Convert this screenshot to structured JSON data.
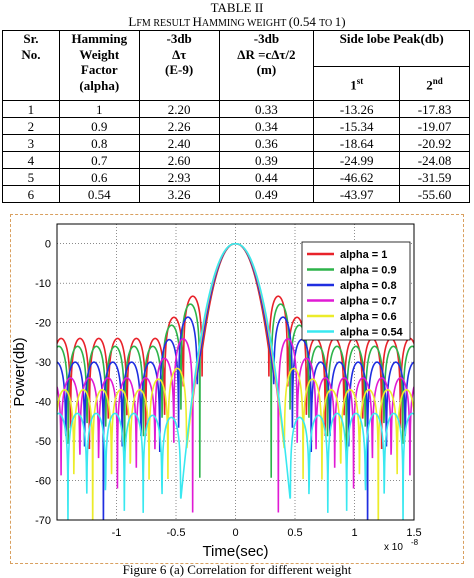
{
  "table": {
    "title": "TABLE II",
    "caption_parts": [
      "L",
      "FM ",
      "RESULT ",
      "H",
      "AMMING WEIGHT ",
      "(0.54 ",
      "TO ",
      "1)"
    ],
    "headers": {
      "sr": [
        "Sr.",
        "No."
      ],
      "hamming": [
        "Hamming",
        "Weight",
        "Factor",
        "(alpha)"
      ],
      "dt": [
        "-3db",
        "Δτ",
        "(E-9)"
      ],
      "dr": [
        "-3db",
        "ΔR =cΔτ/2",
        "(m)"
      ],
      "side_lobe": "Side lobe Peak(db)",
      "first": "1",
      "first_sup": "st",
      "second": "2",
      "second_sup": "nd"
    },
    "rows": [
      [
        "1",
        "1",
        "2.20",
        "0.33",
        "-13.26",
        "-17.83"
      ],
      [
        "2",
        "0.9",
        "2.26",
        "0.34",
        "-15.34",
        "-19.07"
      ],
      [
        "3",
        "0.8",
        "2.40",
        "0.36",
        "-18.64",
        "-20.92"
      ],
      [
        "4",
        "0.7",
        "2.60",
        "0.39",
        "-24.99",
        "-24.08"
      ],
      [
        "5",
        "0.6",
        "2.93",
        "0.44",
        "-46.62",
        "-31.59"
      ],
      [
        "6",
        "0.54",
        "3.26",
        "0.49",
        "-43.97",
        "-55.60"
      ]
    ]
  },
  "chart_data": {
    "type": "line",
    "xlabel": "Time(sec)",
    "ylabel": "Power(db)",
    "x_multiplier": "x 10",
    "x_multiplier_exp": "-8",
    "xlim": [
      -1.5,
      1.5
    ],
    "ylim": [
      -70,
      5
    ],
    "x_ticks": [
      -1.5,
      -1,
      -0.5,
      0,
      0.5,
      1,
      1.5
    ],
    "x_tick_labels": [
      "",
      "-1",
      "-0.5",
      "0",
      "0.5",
      "1",
      "1.5"
    ],
    "y_ticks": [
      0,
      -10,
      -20,
      -30,
      -40,
      -50,
      -60,
      -70
    ],
    "y_tick_labels": [
      "0",
      "-10",
      "-20",
      "-30",
      "-40",
      "-50",
      "-60",
      "-70"
    ],
    "grid": true,
    "legend_position": "top-right",
    "series": [
      {
        "name": "alpha = 1",
        "color": "#e8222a",
        "alpha": 1,
        "mainlobe_half_width": 0.28,
        "sidelobe_period": 0.158,
        "sidelobe_peak_db": -13.3,
        "sidelobe_far_db": -24,
        "null_db": -27
      },
      {
        "name": "alpha = 0.9",
        "color": "#2db34a",
        "alpha": 0.9,
        "mainlobe_half_width": 0.3,
        "sidelobe_period": 0.158,
        "sidelobe_peak_db": -15.3,
        "sidelobe_far_db": -26,
        "null_db": -29
      },
      {
        "name": "alpha = 0.8",
        "color": "#1f2ee0",
        "alpha": 0.8,
        "mainlobe_half_width": 0.32,
        "sidelobe_period": 0.158,
        "sidelobe_peak_db": -18.6,
        "sidelobe_far_db": -30,
        "null_db": -33
      },
      {
        "name": "alpha = 0.7",
        "color": "#e01ad4",
        "alpha": 0.7,
        "mainlobe_half_width": 0.36,
        "sidelobe_period": 0.158,
        "sidelobe_peak_db": -24.1,
        "sidelobe_far_db": -34,
        "null_db": -40
      },
      {
        "name": "alpha = 0.6",
        "color": "#ecec2a",
        "alpha": 0.6,
        "mainlobe_half_width": 0.41,
        "sidelobe_period": 0.158,
        "sidelobe_peak_db": -31.6,
        "sidelobe_far_db": -37,
        "null_db": -52
      },
      {
        "name": "alpha = 0.54",
        "color": "#39e8f0",
        "alpha": 0.54,
        "mainlobe_half_width": 0.46,
        "sidelobe_period": 0.158,
        "sidelobe_peak_db": -44.0,
        "sidelobe_far_db": -43,
        "null_db": -65
      }
    ]
  },
  "figure_caption": "Figure 6 (a) Correlation for different weight"
}
